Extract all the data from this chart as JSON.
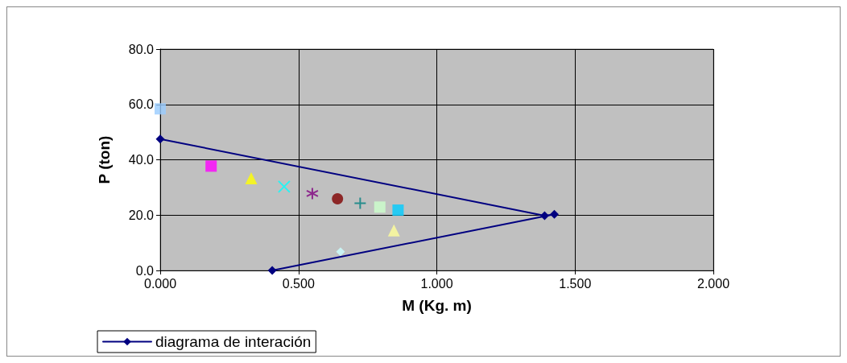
{
  "chart_data": {
    "type": "line",
    "xlabel": "M (Kg. m)",
    "ylabel": "P (ton)",
    "xlim": [
      0,
      2
    ],
    "xticks": [
      {
        "value": 0,
        "label": "0.000"
      },
      {
        "value": 0.5,
        "label": "0.500"
      },
      {
        "value": 1,
        "label": "1.000"
      },
      {
        "value": 1.5,
        "label": "1.500"
      },
      {
        "value": 2,
        "label": "2.000"
      }
    ],
    "ylim": [
      0,
      80
    ],
    "yticks": [
      {
        "value": 0,
        "label": "0.0"
      },
      {
        "value": 20,
        "label": "20.0"
      },
      {
        "value": 40,
        "label": "40.0"
      },
      {
        "value": 60,
        "label": "60.0"
      },
      {
        "value": 80,
        "label": "80.0"
      }
    ],
    "grid": true,
    "legend": "bottom left",
    "marker": "diamond",
    "series": [
      {
        "name": "diagrama de interación",
        "color": "#000080",
        "x": [
          0,
          1.39,
          1.425,
          0.405
        ],
        "values": [
          47.5,
          19.8,
          20.3,
          0
        ]
      },
      {
        "type": "scatter",
        "marker": "square",
        "color": "#99ccff",
        "x": [
          0
        ],
        "values": [
          58.4
        ]
      },
      {
        "type": "scatter",
        "marker": "square",
        "color": "#ff00ff",
        "x": [
          0.184
        ],
        "values": [
          37.7
        ]
      },
      {
        "type": "scatter",
        "marker": "triangle",
        "color": "#ffff00",
        "x": [
          0.329
        ],
        "values": [
          33.3
        ]
      },
      {
        "type": "scatter",
        "marker": "x",
        "color": "#00ffff",
        "x": [
          0.448
        ],
        "values": [
          30.3
        ]
      },
      {
        "type": "scatter",
        "marker": "cross",
        "color": "#800080",
        "x": [
          0.55
        ],
        "values": [
          27.8
        ]
      },
      {
        "type": "scatter",
        "marker": "circle",
        "color": "#800000",
        "x": [
          0.641
        ],
        "values": [
          25.9
        ]
      },
      {
        "type": "scatter",
        "marker": "plus",
        "color": "#008080",
        "x": [
          0.723
        ],
        "values": [
          24.3
        ]
      },
      {
        "type": "scatter",
        "marker": "square",
        "color": "#ccffcc",
        "x": [
          0.794
        ],
        "values": [
          22.9
        ]
      },
      {
        "type": "scatter",
        "marker": "square",
        "color": "#00ccff",
        "x": [
          0.86
        ],
        "values": [
          21.8
        ]
      },
      {
        "type": "scatter",
        "marker": "triangle",
        "color": "#ffff99",
        "x": [
          0.845
        ],
        "values": [
          14.5
        ]
      },
      {
        "type": "scatter",
        "marker": "diamond",
        "color": "#ccffff",
        "x": [
          0.652
        ],
        "values": [
          6.8
        ]
      }
    ]
  }
}
